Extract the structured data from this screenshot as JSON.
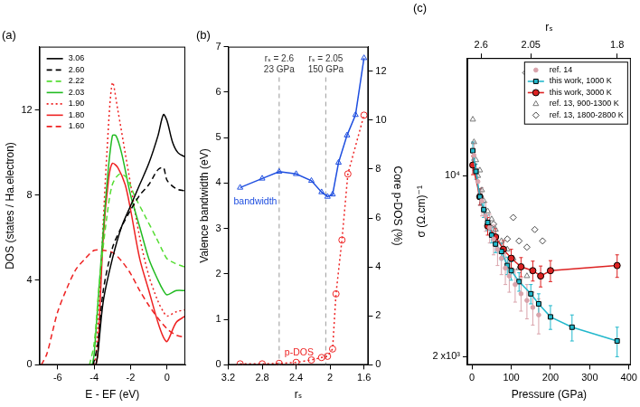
{
  "chart_data": [
    {
      "type": "line",
      "title": "(a)",
      "x_label": "E - EF (eV)",
      "y_label": "DOS (states / Ha.electron)",
      "xlim": [
        -7,
        1
      ],
      "xticks": [
        -6,
        -4,
        -2,
        0
      ],
      "ylim": [
        0,
        15
      ],
      "yticks": [
        0,
        4,
        8,
        12
      ],
      "grid": false,
      "legend": "upper left",
      "series": [
        {
          "name": "3.06",
          "color": "#000000",
          "line_style": "solid",
          "x": [
            -3.9,
            -3.8,
            -3.5,
            -3,
            -2.5,
            -2,
            -1.5,
            -1,
            -0.5,
            -0.2,
            0,
            0.3,
            0.6,
            1
          ],
          "values": [
            0,
            0.5,
            3,
            5,
            6.5,
            7.5,
            8.5,
            9.5,
            10.8,
            11.8,
            11.5,
            10.5,
            10,
            9.8
          ]
        },
        {
          "name": "2.60",
          "color": "#000000",
          "line_style": "dashed",
          "x": [
            -4.05,
            -3.8,
            -3.5,
            -3,
            -2.5,
            -2,
            -1.5,
            -1,
            -0.5,
            -0.2,
            0,
            0.5,
            1
          ],
          "values": [
            0,
            1,
            3.5,
            5.5,
            6.5,
            7.3,
            8,
            8.5,
            9.2,
            9.3,
            8.7,
            8.3,
            8.2
          ]
        },
        {
          "name": "2.22",
          "color": "#55dd33",
          "line_style": "dashed",
          "x": [
            -4.25,
            -4,
            -3.7,
            -3.3,
            -3,
            -2.6,
            -2.2,
            -1.8,
            -1.2,
            -0.6,
            -0.2,
            0,
            0.4,
            1
          ],
          "values": [
            0,
            1,
            4,
            7,
            8.5,
            9,
            8.8,
            8,
            7,
            6,
            5.3,
            5,
            4.8,
            4.6
          ]
        },
        {
          "name": "2.03",
          "color": "#22bb22",
          "line_style": "solid",
          "x": [
            -4.1,
            -4,
            -3.7,
            -3.3,
            -3,
            -2.8,
            -2.5,
            -2,
            -1.5,
            -1,
            -0.5,
            -0.2,
            0,
            0.5,
            1
          ],
          "values": [
            0,
            0.5,
            4,
            8.5,
            10.8,
            10.8,
            10,
            8,
            6.5,
            5,
            4,
            3.5,
            3.3,
            3.5,
            3.5
          ]
        },
        {
          "name": "1.90",
          "color": "#ee2222",
          "line_style": "dotted",
          "x": [
            -4,
            -3.9,
            -3.6,
            -3.3,
            -3,
            -2.7,
            -2.3,
            -2,
            -1.5,
            -1,
            -0.5,
            -0.2,
            0,
            0.5,
            1
          ],
          "values": [
            0,
            0.5,
            5,
            10,
            13.3,
            12,
            10,
            8.5,
            6,
            4.2,
            3,
            2.5,
            2.3,
            2.5,
            2.6
          ]
        },
        {
          "name": "1.80",
          "color": "#ee2222",
          "line_style": "solid",
          "x": [
            -3.9,
            -3.8,
            -3.5,
            -3.2,
            -3,
            -2.7,
            -2.3,
            -2,
            -1.5,
            -1,
            -0.5,
            -0.2,
            0,
            0.5,
            1
          ],
          "values": [
            0,
            0.5,
            6,
            8.8,
            9.5,
            9.3,
            8.5,
            7.3,
            5,
            3.5,
            2,
            1.3,
            1.1,
            2,
            2.3
          ]
        },
        {
          "name": "1.60",
          "color": "#ee2222",
          "line_style": "dashed",
          "x": [
            -6.9,
            -6.6,
            -6.3,
            -6,
            -5.5,
            -5,
            -4.5,
            -4,
            -3.5,
            -3,
            -2.5,
            -2,
            -1.5,
            -1,
            -0.5,
            0,
            0.5,
            1
          ],
          "values": [
            0,
            0.5,
            1.5,
            2.5,
            3.6,
            4.5,
            5,
            5.4,
            5.4,
            5.3,
            4.9,
            4.3,
            3.5,
            2.8,
            2.2,
            1.7,
            1.4,
            1.3
          ]
        }
      ]
    },
    {
      "type": "line",
      "title": "(b)",
      "x_label": "rₛ",
      "y_label": "Valence bandwidth (eV)",
      "y2_label": "Core p-DOS (%)",
      "xlim": [
        3.2,
        1.55
      ],
      "xticks": [
        3.2,
        2.8,
        2.4,
        2,
        1.6
      ],
      "ylim": [
        0,
        7
      ],
      "yticks": [
        0,
        1,
        2,
        3,
        4,
        5,
        6,
        7
      ],
      "y2lim": [
        0,
        13
      ],
      "y2ticks": [
        0,
        2,
        4,
        6,
        8,
        10,
        12
      ],
      "grid": false,
      "annotations": [
        {
          "text": [
            "rₛ = 2.6",
            "23 GPa"
          ],
          "x": 2.6
        },
        {
          "text": [
            "rₛ = 2.05",
            "150 GPa"
          ],
          "x": 2.05
        }
      ],
      "series": [
        {
          "name": "bandwidth",
          "color": "#1f4fe0",
          "marker": "triangle-open",
          "line_style": "solid",
          "x": [
            3.06,
            2.8,
            2.6,
            2.4,
            2.22,
            2.1,
            2.03,
            1.97,
            1.9,
            1.8,
            1.7,
            1.6
          ],
          "values": [
            3.9,
            4.1,
            4.25,
            4.2,
            4.05,
            3.8,
            3.7,
            3.75,
            4.45,
            5.05,
            5.5,
            6.75
          ]
        },
        {
          "name": "p-DOS",
          "color": "#ee2222",
          "marker": "circle-open",
          "line_style": "dotted",
          "axis": "y2",
          "x": [
            3.06,
            2.8,
            2.6,
            2.4,
            2.22,
            2.1,
            2.03,
            1.97,
            1.93,
            1.86,
            1.79,
            1.6
          ],
          "values": [
            0.04,
            0.04,
            0.06,
            0.1,
            0.2,
            0.3,
            0.35,
            0.65,
            2.9,
            5.1,
            7.8,
            10.2
          ]
        }
      ]
    },
    {
      "type": "scatter",
      "title": "(c)",
      "x_label": "Pressure (GPa)",
      "y_label": "σ (Ω.cm)⁻¹",
      "x2_label": "rₛ",
      "x2_marks": [
        {
          "pressure": 23,
          "rs": 2.6
        },
        {
          "pressure": 150,
          "rs": 2.05
        },
        {
          "pressure": 370,
          "rs": 1.8
        }
      ],
      "xlim": [
        -12,
        405
      ],
      "xticks": [
        0,
        100,
        200,
        300,
        400
      ],
      "ylim": [
        1860,
        28500
      ],
      "yticks": [
        {
          "value": 2000,
          "label": "2 x10³"
        },
        {
          "value": 10000,
          "label": "10⁴"
        }
      ],
      "log": "y",
      "grid": false,
      "legend": "upper right",
      "series": [
        {
          "name": "ref. 14",
          "color": "#d9a3ab",
          "marker": "dot",
          "x": [
            5,
            15,
            25,
            35,
            45,
            55,
            65,
            75,
            85,
            95,
            110,
            125,
            140,
            155,
            170
          ],
          "values": [
            12000,
            9500,
            8000,
            7000,
            6300,
            5700,
            5200,
            4800,
            4400,
            4100,
            3800,
            3500,
            3300,
            3100,
            2900
          ],
          "errors": [
            1500,
            1200,
            1000,
            900,
            800,
            750,
            700,
            650,
            600,
            550,
            550,
            500,
            500,
            450,
            450
          ]
        },
        {
          "name": "this work, 1000 K",
          "color": "#22b8cc",
          "marker": "square",
          "line_style": "solid",
          "x": [
            2,
            10,
            20,
            30,
            40,
            50,
            60,
            75,
            90,
            100,
            120,
            150,
            170,
            200,
            255,
            370
          ],
          "values": [
            12500,
            10400,
            8300,
            7400,
            6600,
            5900,
            5450,
            5100,
            4500,
            4300,
            3900,
            3500,
            3200,
            2850,
            2600,
            2300
          ],
          "errors": [
            1000,
            700,
            600,
            500,
            450,
            400,
            400,
            380,
            350,
            350,
            320,
            300,
            300,
            300,
            300,
            300
          ]
        },
        {
          "name": "this work, 3000 K",
          "color": "#dd2222",
          "marker": "circle",
          "line_style": "solid",
          "x": [
            2,
            20,
            40,
            60,
            80,
            100,
            125,
            155,
            175,
            200,
            370
          ],
          "values": [
            11000,
            8300,
            6400,
            5800,
            5200,
            4800,
            4450,
            4300,
            4100,
            4300,
            4500
          ],
          "errors": [
            900,
            600,
            500,
            450,
            420,
            400,
            380,
            380,
            380,
            400,
            450
          ]
        },
        {
          "name": "ref. 13, 900-1300 K",
          "color": "#777777",
          "marker": "triangle-open",
          "x": [
            2,
            5,
            10,
            15,
            20,
            25,
            30,
            40,
            50,
            60,
            75,
            90,
            105,
            120,
            140
          ],
          "values": [
            16500,
            13500,
            11500,
            10000,
            10500,
            8800,
            8000,
            7300,
            6800,
            6200,
            5600,
            5200,
            4800,
            4400,
            4100
          ]
        },
        {
          "name": "ref. 13, 1800-2800 K",
          "color": "#444444",
          "marker": "diamond-open",
          "x": [
            55,
            90,
            105,
            120,
            137,
            140,
            160,
            180
          ],
          "values": [
            6500,
            5700,
            6900,
            5600,
            25000,
            5300,
            6200,
            5600
          ]
        }
      ]
    }
  ]
}
